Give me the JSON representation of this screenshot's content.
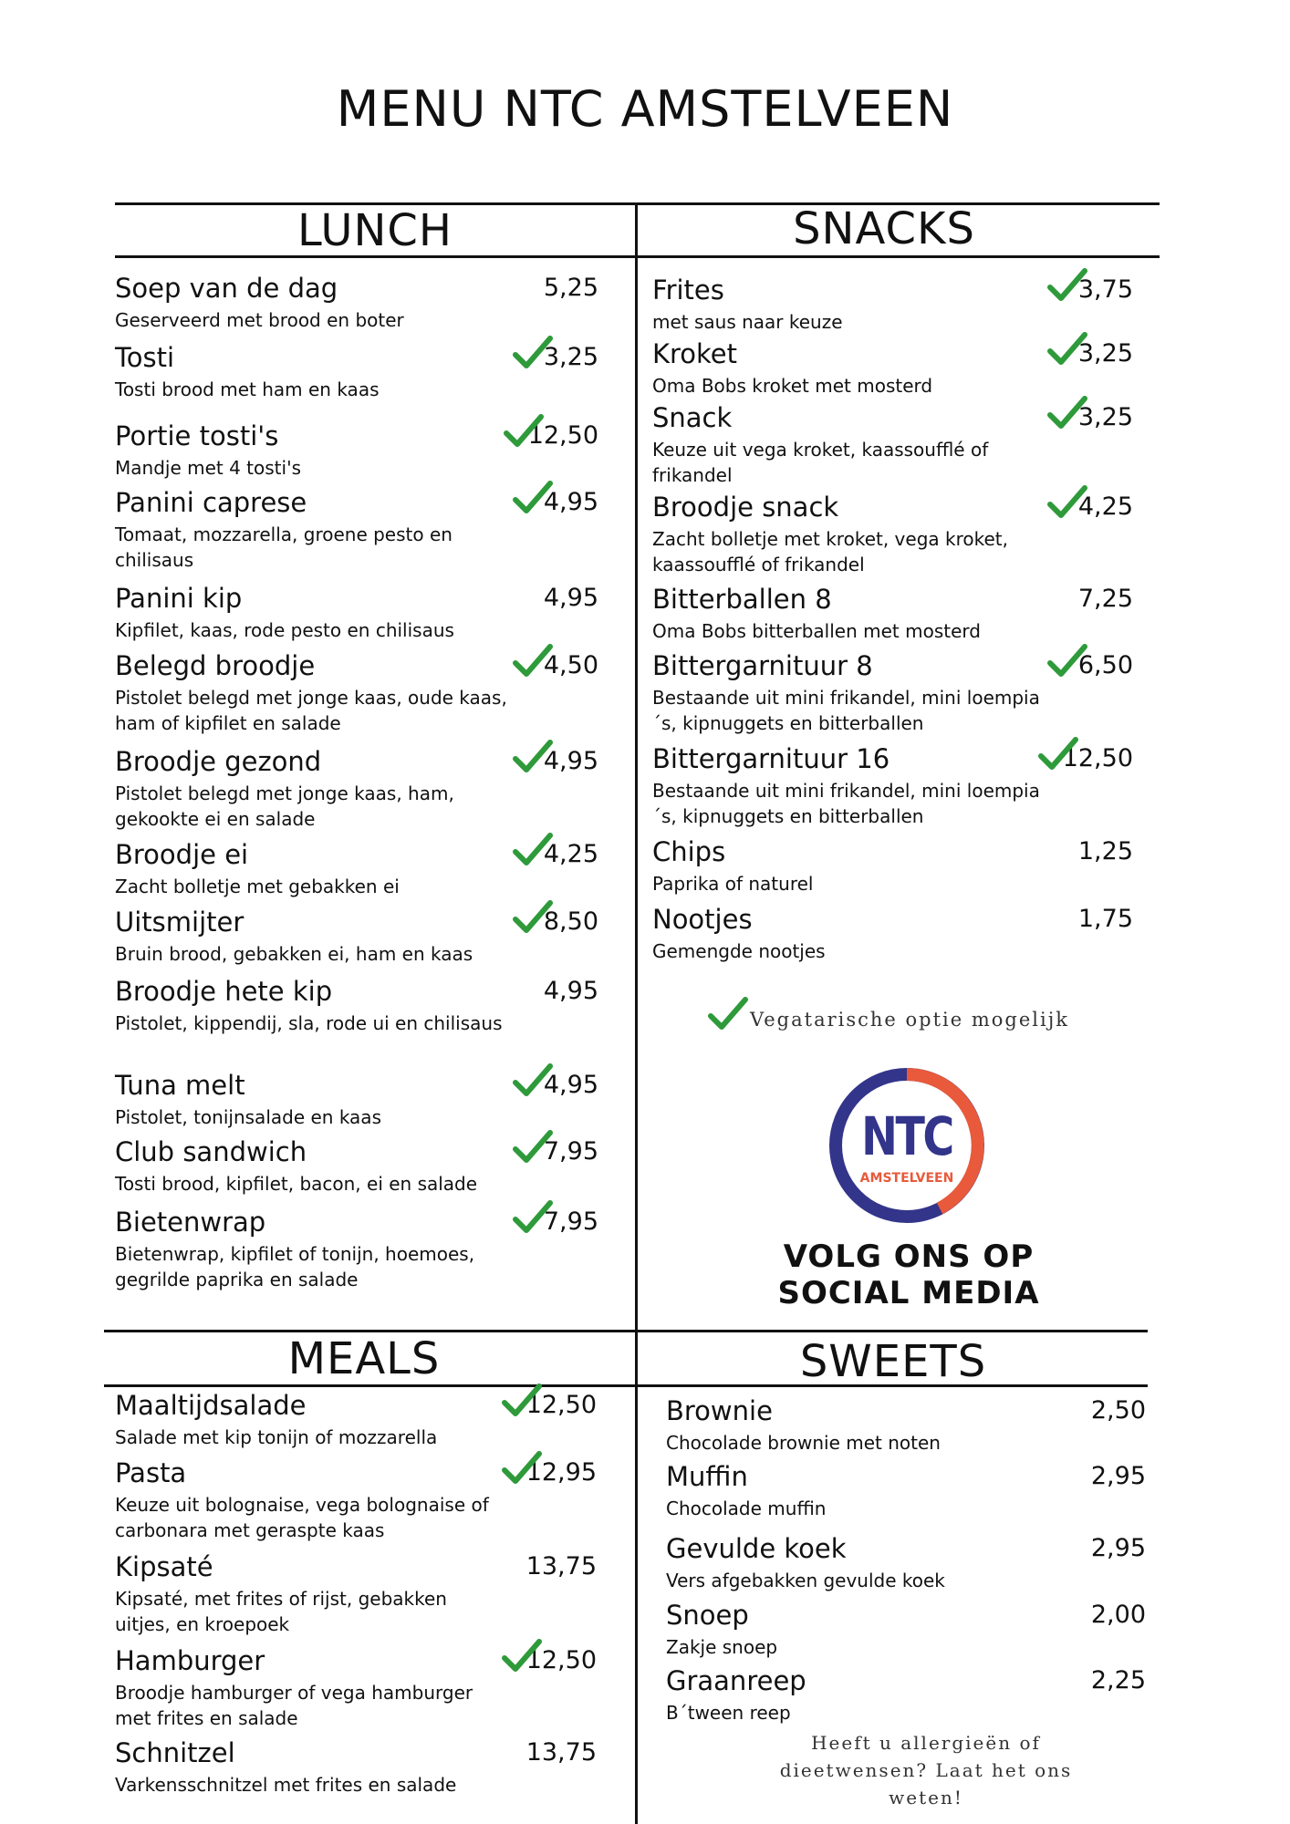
{
  "title": "MENU NTC AMSTELVEEN",
  "colors": {
    "check": "#2e9a3a",
    "logo_blue": "#33358a",
    "logo_orange": "#e85a3b"
  },
  "lunch": {
    "heading": "LUNCH",
    "items": [
      {
        "name": "Soep van de dag",
        "desc": "Geserveerd met brood en boter",
        "price": "5,25",
        "veg": false
      },
      {
        "name": "Tosti",
        "desc": "Tosti brood met ham en kaas",
        "price": "3,25",
        "veg": true
      },
      {
        "name": "Portie tosti's",
        "desc": "Mandje met 4 tosti's",
        "price": "12,50",
        "veg": true
      },
      {
        "name": "Panini caprese",
        "desc": "Tomaat, mozzarella, groene pesto en chilisaus",
        "price": "4,95",
        "veg": true
      },
      {
        "name": "Panini kip",
        "desc": "Kipfilet, kaas, rode pesto en chilisaus",
        "price": "4,95",
        "veg": false
      },
      {
        "name": "Belegd broodje",
        "desc": "Pistolet belegd met jonge kaas, oude kaas, ham of kipfilet en salade",
        "price": "4,50",
        "veg": true
      },
      {
        "name": "Broodje gezond",
        "desc": "Pistolet belegd met jonge kaas, ham, gekookte ei en salade",
        "price": "4,95",
        "veg": true
      },
      {
        "name": "Broodje ei",
        "desc": "Zacht bolletje met gebakken ei",
        "price": "4,25",
        "veg": true
      },
      {
        "name": "Uitsmijter",
        "desc": "Bruin brood, gebakken ei, ham en kaas",
        "price": "8,50",
        "veg": true
      },
      {
        "name": "Broodje hete kip",
        "desc": "Pistolet, kippendij, sla, rode ui en chilisaus",
        "price": "4,95",
        "veg": false
      },
      {
        "name": "Tuna melt",
        "desc": "Pistolet, tonijnsalade en kaas",
        "price": "4,95",
        "veg": true
      },
      {
        "name": "Club sandwich",
        "desc": "Tosti brood, kipfilet, bacon, ei en salade",
        "price": "7,95",
        "veg": true
      },
      {
        "name": "Bietenwrap",
        "desc": "Bietenwrap, kipfilet of tonijn, hoemoes, gegrilde paprika en salade",
        "price": "7,95",
        "veg": true
      }
    ]
  },
  "snacks": {
    "heading": "SNACKS",
    "items": [
      {
        "name": "Frites",
        "desc": "met saus naar keuze",
        "price": "3,75",
        "veg": true
      },
      {
        "name": "Kroket",
        "desc": "Oma Bobs kroket met mosterd",
        "price": "3,25",
        "veg": true
      },
      {
        "name": "Snack",
        "desc": "Keuze uit vega kroket, kaassoufflé of frikandel",
        "price": "3,25",
        "veg": true
      },
      {
        "name": "Broodje snack",
        "desc": "Zacht bolletje met kroket, vega kroket, kaassoufflé of frikandel",
        "price": "4,25",
        "veg": true
      },
      {
        "name": "Bitterballen 8",
        "desc": "Oma Bobs bitterballen met mosterd",
        "price": "7,25",
        "veg": false
      },
      {
        "name": "Bittergarnituur 8",
        "desc": "Bestaande uit mini frikandel, mini loempia´s, kipnuggets en bitterballen",
        "price": "6,50",
        "veg": true
      },
      {
        "name": "Bittergarnituur 16",
        "desc": "Bestaande uit mini frikandel, mini loempia´s, kipnuggets en bitterballen",
        "price": "12,50",
        "veg": true
      },
      {
        "name": "Chips",
        "desc": "Paprika of naturel",
        "price": "1,25",
        "veg": false
      },
      {
        "name": "Nootjes",
        "desc": "Gemengde nootjes",
        "price": "1,75",
        "veg": false
      }
    ]
  },
  "veg_note": "Vegatarische optie mogelijk",
  "logo": {
    "big": "NTC",
    "small": "AMSTELVEEN"
  },
  "social": {
    "line1": "VOLG ONS OP",
    "line2": "SOCIAL MEDIA"
  },
  "meals": {
    "heading": "MEALS",
    "items": [
      {
        "name": "Maaltijdsalade",
        "desc": "Salade met kip tonijn of mozzarella",
        "price": "12,50",
        "veg": true
      },
      {
        "name": "Pasta",
        "desc": "Keuze uit bolognaise, vega bolognaise of carbonara met geraspte kaas",
        "price": "12,95",
        "veg": true
      },
      {
        "name": "Kipsaté",
        "desc": "Kipsaté, met frites of rijst, gebakken uitjes, en kroepoek",
        "price": "13,75",
        "veg": false
      },
      {
        "name": "Hamburger",
        "desc": "Broodje hamburger of vega hamburger met frites en salade",
        "price": "12,50",
        "veg": true
      },
      {
        "name": "Schnitzel",
        "desc": "Varkensschnitzel met frites en salade",
        "price": "13,75",
        "veg": false
      }
    ]
  },
  "sweets": {
    "heading": "SWEETS",
    "items": [
      {
        "name": "Brownie",
        "desc": "Chocolade brownie met noten",
        "price": "2,50",
        "veg": false
      },
      {
        "name": "Muffin",
        "desc": "Chocolade muffin",
        "price": "2,95",
        "veg": false
      },
      {
        "name": "Gevulde koek",
        "desc": "Vers afgebakken gevulde koek",
        "price": "2,95",
        "veg": false
      },
      {
        "name": "Snoep",
        "desc": "Zakje snoep",
        "price": "2,00",
        "veg": false
      },
      {
        "name": "Graanreep",
        "desc": "B´tween reep",
        "price": "2,25",
        "veg": false
      }
    ]
  },
  "allergy": {
    "line1": "Heeft u allergieën of",
    "line2": "dieetwensen? Laat het ons",
    "line3": "weten!"
  }
}
